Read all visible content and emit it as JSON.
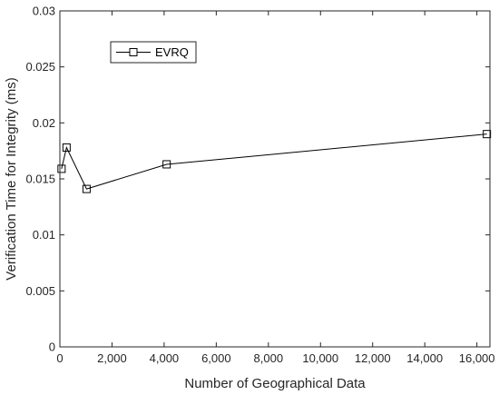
{
  "chart_data": {
    "type": "line",
    "title": "",
    "xlabel": "Number of Geographical Data",
    "ylabel": "Verification Time for Integrity (ms)",
    "xlim": [
      0,
      16500
    ],
    "ylim": [
      0,
      0.03
    ],
    "xticks": [
      0,
      2000,
      4000,
      6000,
      8000,
      10000,
      12000,
      14000,
      16000
    ],
    "xtick_labels": [
      "0",
      "2,000",
      "4,000",
      "6,000",
      "8,000",
      "10,000",
      "12,000",
      "14,000",
      "16,000"
    ],
    "yticks": [
      0,
      0.005,
      0.01,
      0.015,
      0.02,
      0.025,
      0.03
    ],
    "ytick_labels": [
      "0",
      "0.005",
      "0.01",
      "0.015",
      "0.02",
      "0.025",
      "0.03"
    ],
    "grid": false,
    "legend_position": "top-left",
    "series": [
      {
        "name": "EVRQ",
        "color": "#000000",
        "marker": "square",
        "x": [
          64,
          256,
          1024,
          4096,
          16384
        ],
        "y": [
          0.0159,
          0.0178,
          0.0141,
          0.0163,
          0.019
        ]
      }
    ]
  }
}
